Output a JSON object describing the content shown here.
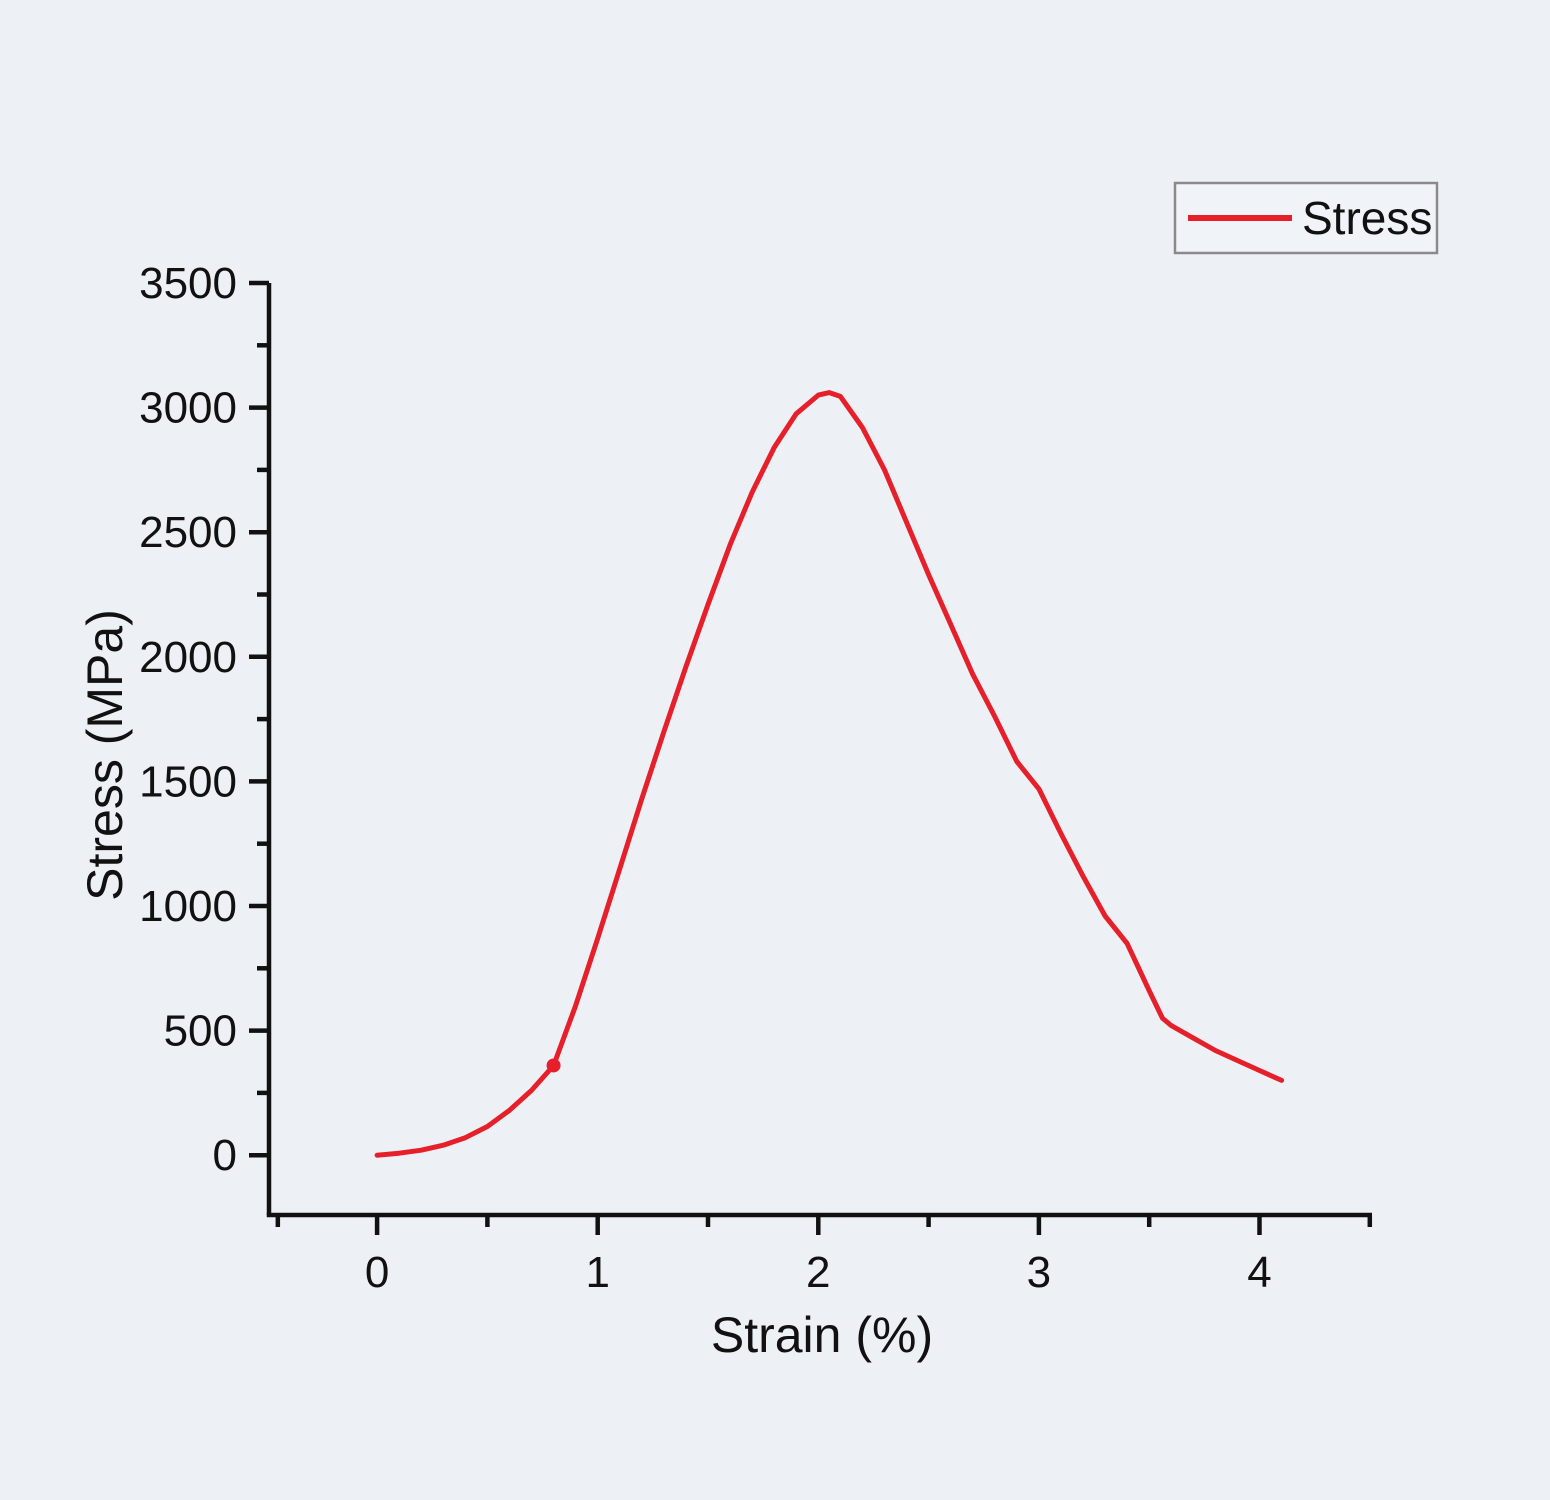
{
  "figure": {
    "background": "#edf1f6",
    "axis_color": "#111111",
    "text_color": "#111111",
    "legend_border_color": "#8a8a8a"
  },
  "chart_data": {
    "type": "line",
    "title": "",
    "xlabel": "Strain (%)",
    "ylabel": "Stress (MPa)",
    "xlim": [
      -0.49,
      4.51
    ],
    "ylim": [
      -240,
      3500
    ],
    "x_ticks": [
      0,
      1,
      2,
      3,
      4
    ],
    "x_minor_ticks": [
      -0.45,
      0.5,
      1.5,
      2.5,
      3.5,
      4.5
    ],
    "y_ticks": [
      0,
      500,
      1000,
      1500,
      2000,
      2500,
      3000,
      3500
    ],
    "y_minor_ticks": [
      -250,
      250,
      750,
      1250,
      1750,
      2250,
      2750,
      3250
    ],
    "grid": false,
    "legend_position": "top-right",
    "series": [
      {
        "name": "Stress",
        "color": "#e6202a",
        "marker_point": {
          "x": 0.8,
          "y": 360
        },
        "x": [
          0.0,
          0.1,
          0.2,
          0.3,
          0.4,
          0.5,
          0.6,
          0.7,
          0.8,
          0.9,
          1.0,
          1.1,
          1.2,
          1.3,
          1.4,
          1.5,
          1.6,
          1.7,
          1.8,
          1.9,
          2.0,
          2.05,
          2.1,
          2.2,
          2.3,
          2.4,
          2.5,
          2.6,
          2.7,
          2.8,
          2.9,
          3.0,
          3.1,
          3.2,
          3.3,
          3.4,
          3.5,
          3.56,
          3.6,
          3.7,
          3.8,
          3.9,
          4.0,
          4.1
        ],
        "y": [
          0,
          8,
          20,
          40,
          70,
          115,
          180,
          260,
          360,
          600,
          870,
          1150,
          1430,
          1700,
          1960,
          2210,
          2450,
          2660,
          2840,
          2975,
          3050,
          3060,
          3045,
          2920,
          2750,
          2540,
          2330,
          2130,
          1930,
          1760,
          1580,
          1470,
          1290,
          1120,
          960,
          850,
          660,
          550,
          520,
          470,
          420,
          380,
          340,
          300
        ]
      }
    ]
  }
}
